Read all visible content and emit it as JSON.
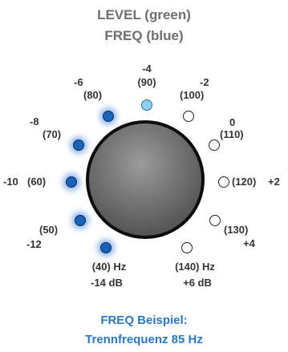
{
  "title": {
    "line1": "LEVEL (green)",
    "line2": "FREQ (blue)"
  },
  "positions": [
    {
      "level": "-14 dB",
      "freq": "(40) Hz",
      "state": "active"
    },
    {
      "level": "-12",
      "freq": "(50)",
      "state": "active"
    },
    {
      "level": "-10",
      "freq": "(60)",
      "state": "active"
    },
    {
      "level": "-8",
      "freq": "(70)",
      "state": "active"
    },
    {
      "level": "-6",
      "freq": "(80)",
      "state": "active"
    },
    {
      "level": "-4",
      "freq": "(90)",
      "state": "highlight"
    },
    {
      "level": "-2",
      "freq": "(100)",
      "state": "off"
    },
    {
      "level": "0",
      "freq": "(110)",
      "state": "off"
    },
    {
      "level": "+2",
      "freq": "(120)",
      "state": "off"
    },
    {
      "level": "+4",
      "freq": "(130)",
      "state": "off"
    },
    {
      "level": "+6 dB",
      "freq": "(140) Hz",
      "state": "off"
    }
  ],
  "colors": {
    "active": "#1a63b8",
    "highlight": "#8fd0f5",
    "title": "#6f6f6f",
    "caption": "#2a78c4"
  },
  "caption": {
    "line1": "FREQ Beispiel:",
    "line2": "Trennfrequenz 85 Hz"
  }
}
